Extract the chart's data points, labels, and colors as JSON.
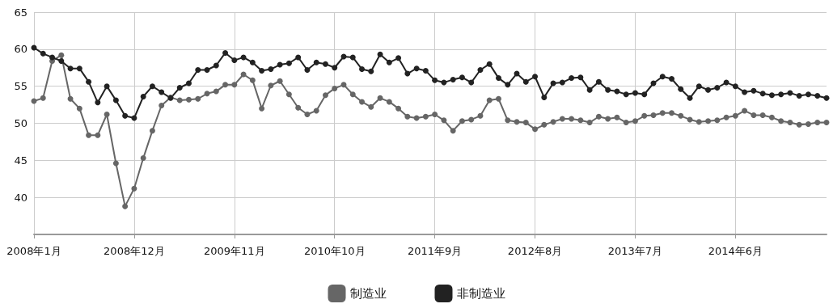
{
  "chart_data": {
    "type": "line",
    "categories": [
      "2008年1月",
      null,
      null,
      null,
      null,
      null,
      null,
      null,
      null,
      null,
      null,
      "2008年12月",
      null,
      null,
      null,
      null,
      null,
      null,
      null,
      null,
      null,
      null,
      "2009年11月",
      null,
      null,
      null,
      null,
      null,
      null,
      null,
      null,
      null,
      null,
      "2010年10月",
      null,
      null,
      null,
      null,
      null,
      null,
      null,
      null,
      null,
      null,
      "2011年9月",
      null,
      null,
      null,
      null,
      null,
      null,
      null,
      null,
      null,
      null,
      "2012年8月",
      null,
      null,
      null,
      null,
      null,
      null,
      null,
      null,
      null,
      null,
      "2013年7月",
      null,
      null,
      null,
      null,
      null,
      null,
      null,
      null,
      null,
      null,
      "2014年6月",
      null,
      null,
      null,
      null,
      null,
      null,
      null,
      null,
      null,
      null
    ],
    "series": [
      {
        "name": "制造业",
        "color": "#666666",
        "values": [
          53.0,
          53.4,
          58.4,
          59.2,
          53.3,
          52.0,
          48.4,
          48.4,
          51.2,
          44.6,
          38.8,
          41.2,
          45.3,
          49.0,
          52.4,
          53.5,
          53.1,
          53.2,
          53.3,
          54.0,
          54.3,
          55.2,
          55.2,
          56.6,
          55.8,
          52.0,
          55.1,
          55.7,
          53.9,
          52.1,
          51.2,
          51.7,
          53.8,
          54.7,
          55.2,
          53.9,
          52.9,
          52.2,
          53.4,
          52.9,
          52.0,
          50.9,
          50.7,
          50.9,
          51.2,
          50.4,
          49.0,
          50.3,
          50.5,
          51.0,
          53.1,
          53.3,
          50.4,
          50.2,
          50.1,
          49.2,
          49.8,
          50.2,
          50.6,
          50.6,
          50.4,
          50.1,
          50.9,
          50.6,
          50.8,
          50.1,
          50.3,
          51.0,
          51.1,
          51.4,
          51.4,
          51.0,
          50.5,
          50.2,
          50.3,
          50.4,
          50.8,
          51.0,
          51.7,
          51.1,
          51.1,
          50.8,
          50.3,
          50.1,
          49.8,
          49.9,
          50.1,
          50.1
        ]
      },
      {
        "name": "非制造业",
        "color": "#222222",
        "values": [
          60.2,
          59.4,
          58.9,
          58.4,
          57.4,
          57.4,
          55.6,
          52.8,
          55.0,
          53.1,
          51.0,
          50.7,
          53.6,
          55.0,
          54.2,
          53.4,
          54.8,
          55.4,
          57.2,
          57.2,
          57.8,
          59.5,
          58.5,
          58.9,
          58.2,
          57.1,
          57.3,
          57.9,
          58.1,
          58.9,
          57.2,
          58.2,
          58.0,
          57.5,
          59.0,
          58.9,
          57.3,
          57.0,
          59.3,
          58.2,
          58.8,
          56.7,
          57.4,
          57.1,
          55.8,
          55.5,
          55.9,
          56.2,
          55.5,
          57.2,
          58.0,
          56.1,
          55.2,
          56.7,
          55.6,
          56.3,
          53.5,
          55.4,
          55.5,
          56.1,
          56.2,
          54.5,
          55.6,
          54.5,
          54.3,
          53.9,
          54.1,
          53.9,
          55.4,
          56.3,
          56.0,
          54.6,
          53.4,
          55.0,
          54.5,
          54.8,
          55.5,
          55.0,
          54.2,
          54.4,
          54.0,
          53.8,
          53.9,
          54.1,
          53.7,
          53.9,
          53.7,
          53.4
        ]
      }
    ],
    "ylim": [
      35,
      65
    ],
    "yticks": [
      40,
      45,
      50,
      55,
      60,
      65
    ],
    "grid": true,
    "legend": "bottom",
    "marker": "circle",
    "line_style": "solid"
  }
}
